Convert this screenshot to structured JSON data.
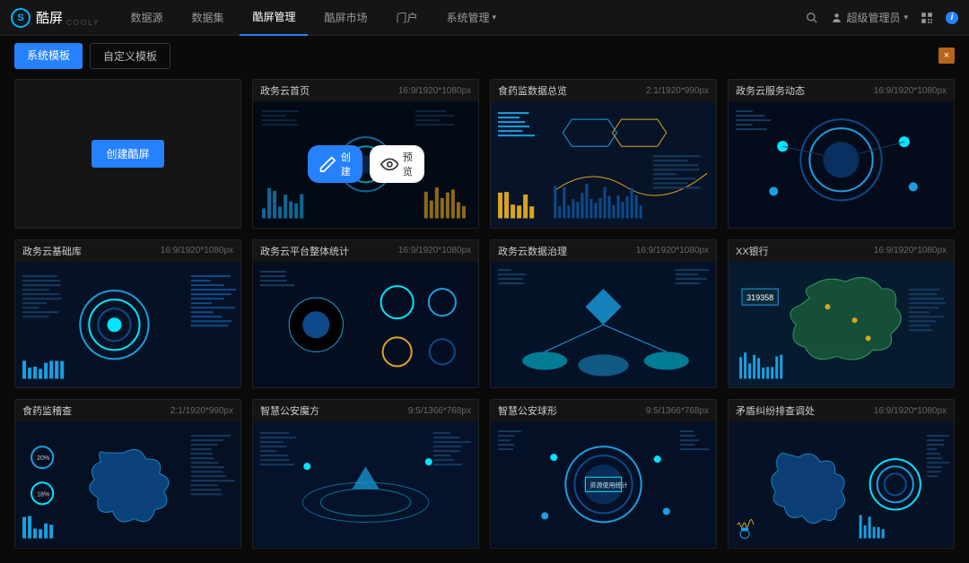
{
  "brand": {
    "name": "酷屏",
    "sub": "COOLY",
    "mark": "S"
  },
  "nav": {
    "items": [
      {
        "label": "数据源"
      },
      {
        "label": "数据集"
      },
      {
        "label": "酷屏管理"
      },
      {
        "label": "酷屏市场"
      },
      {
        "label": "门户"
      },
      {
        "label": "系统管理",
        "dropdown": true
      }
    ],
    "activeIndex": 2
  },
  "headerRight": {
    "userLabel": "超级管理员",
    "searchIcon": "search",
    "qrIcon": "qr",
    "infoIcon": "i"
  },
  "tabs": {
    "items": [
      {
        "label": "系统模板",
        "active": true
      },
      {
        "label": "自定义模板",
        "active": false
      }
    ],
    "closeLabel": "×"
  },
  "createButton": {
    "label": "创建酷屏"
  },
  "overlay": {
    "create": "创建",
    "preview": "预览"
  },
  "templates": [
    {
      "title": "政务云首页",
      "dim": "16:9/1920*1080px",
      "showOverlay": true,
      "variant": 1
    },
    {
      "title": "食药监数据总览",
      "dim": "2:1/1920*990px",
      "variant": 2
    },
    {
      "title": "政务云服务动态",
      "dim": "16:9/1920*1080px",
      "variant": 3
    },
    {
      "title": "政务云基础库",
      "dim": "16:9/1920*1080px",
      "variant": 4
    },
    {
      "title": "政务云平台整体统计",
      "dim": "16:9/1920*1080px",
      "variant": 5
    },
    {
      "title": "政务云数据治理",
      "dim": "16:9/1920*1080px",
      "variant": 6
    },
    {
      "title": "XX银行",
      "dim": "16:9/1920*1080px",
      "variant": 7
    },
    {
      "title": "食药监稽查",
      "dim": "2:1/1920*990px",
      "variant": 8
    },
    {
      "title": "智慧公安魔方",
      "dim": "9:5/1366*768px",
      "variant": 9
    },
    {
      "title": "智慧公安球形",
      "dim": "9:5/1366*768px",
      "variant": 10
    },
    {
      "title": "矛盾纠纷排查调处",
      "dim": "16:9/1920*1080px",
      "variant": 11
    }
  ],
  "colors": {
    "accent": "#2681ff",
    "cyan": "#00b4ff",
    "bg": "#0a0a0a",
    "panel": "#151515",
    "thumbGradInner": "#0a2845",
    "thumbGradOuter": "#030812",
    "closeOrange": "#b8651a"
  }
}
